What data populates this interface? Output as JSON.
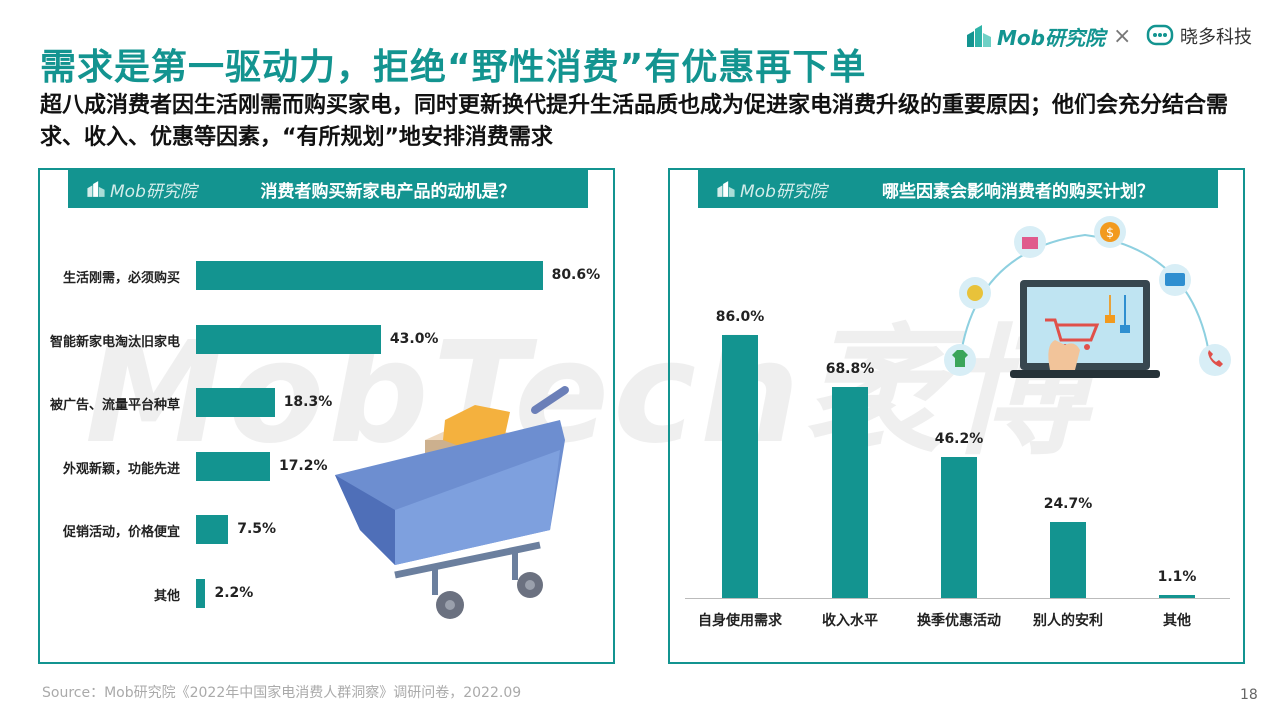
{
  "title": "需求是第一驱动力，拒绝“野性消费”有优惠再下单",
  "subtitle": "超八成消费者因生活刚需而购买家电，同时更新换代提升生活品质也成为促进家电消费升级的重要原因；他们会充分结合需求、收入、优惠等因素，“有所规划”地安排消费需求",
  "logos": {
    "mob": "Mob研究院",
    "cross": "×",
    "xiaoduo": "晓多科技",
    "watermark": "MobTech袤博"
  },
  "colors": {
    "accent": "#139490"
  },
  "left_panel": {
    "logo": "Mob研究院",
    "title": "消费者购买新家电产品的动机是？"
  },
  "right_panel": {
    "logo": "Mob研究院",
    "title": "哪些因素会影响消费者的购买计划？"
  },
  "chart_data": [
    {
      "type": "bar",
      "orientation": "horizontal",
      "title": "消费者购买新家电产品的动机是？",
      "categories": [
        "生活刚需，必须购买",
        "智能新家电淘汰旧家电",
        "被广告、流量平台种草",
        "外观新颖，功能先进",
        "促销活动，价格便宜",
        "其他"
      ],
      "values": [
        80.6,
        43.0,
        18.3,
        17.2,
        7.5,
        2.2
      ],
      "value_labels": [
        "80.6%",
        "43.0%",
        "18.3%",
        "17.2%",
        "7.5%",
        "2.2%"
      ],
      "unit": "%",
      "xlim": [
        0,
        100
      ],
      "grid": false
    },
    {
      "type": "bar",
      "orientation": "vertical",
      "title": "哪些因素会影响消费者的购买计划？",
      "categories": [
        "自身使用需求",
        "收入水平",
        "换季优惠活动",
        "别人的安利",
        "其他"
      ],
      "values": [
        86.0,
        68.8,
        46.2,
        24.7,
        1.1
      ],
      "value_labels": [
        "86.0%",
        "68.8%",
        "46.2%",
        "24.7%",
        "1.1%"
      ],
      "unit": "%",
      "ylim": [
        0,
        100
      ],
      "grid": false
    }
  ],
  "source": "Source：Mob研究院《2022年中国家电消费人群洞察》调研问卷，2022.09",
  "page_number": "18",
  "icons": [
    "mob-logo-icon",
    "xiaoduo-logo-icon",
    "shopping-cart-illustration",
    "gift-icon",
    "dollar-icon",
    "credit-card-icon",
    "coin-icon",
    "tshirt-icon",
    "phone-icon",
    "laptop-shopping-illustration"
  ]
}
